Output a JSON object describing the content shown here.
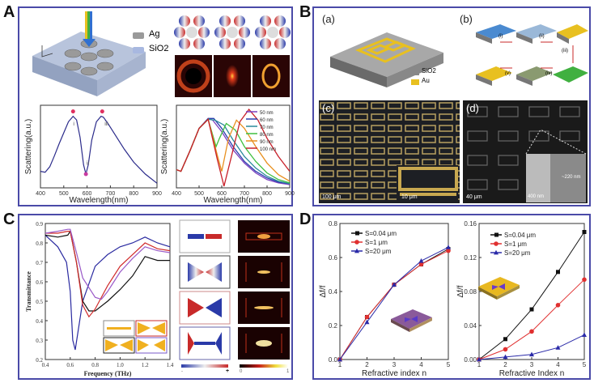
{
  "panels": {
    "A": {
      "letter": "A",
      "legend_materials": [
        "Ag",
        "SiO2"
      ],
      "mode_labels": [
        "i",
        "ii",
        "iii"
      ]
    },
    "B": {
      "letter": "B",
      "sublabels": [
        "(a)",
        "(b)",
        "(c)",
        "(d)"
      ],
      "materials": [
        "SiO2",
        "Au"
      ],
      "steps": [
        "(i)",
        "(ii)",
        "(iii)",
        "(iv)",
        "(v)"
      ],
      "scalebars": [
        "100 μm",
        "10 μm",
        "40 μm",
        "400 nm",
        "~220 nm"
      ]
    },
    "C": {
      "letter": "C",
      "colorbar_labels": [
        "-",
        "+",
        "0",
        "1"
      ]
    },
    "D": {
      "letter": "D"
    }
  },
  "chart_data": [
    {
      "id": "A-left",
      "type": "line",
      "xlabel": "Wavelength(nm)",
      "ylabel": "Scattering(a.u.)",
      "xlim": [
        400,
        900
      ],
      "xticks": [
        "400",
        "500",
        "600",
        "700",
        "800",
        "900"
      ],
      "annotations": [
        "i",
        "ii",
        "iii"
      ],
      "series": [
        {
          "name": "spectrum",
          "color": "#2a2a8a",
          "x": [
            400,
            420,
            440,
            460,
            480,
            500,
            520,
            540,
            555,
            570,
            585,
            595,
            605,
            620,
            640,
            660,
            670,
            690,
            720,
            760,
            800,
            850,
            900
          ],
          "y": [
            0.28,
            0.27,
            0.33,
            0.45,
            0.58,
            0.7,
            0.82,
            0.88,
            0.84,
            0.65,
            0.35,
            0.25,
            0.35,
            0.62,
            0.82,
            0.88,
            0.87,
            0.8,
            0.68,
            0.52,
            0.38,
            0.25,
            0.15
          ]
        }
      ]
    },
    {
      "id": "A-right",
      "type": "line",
      "xlabel": "Wavelength(nm)",
      "ylabel": "Scattering(a.u.)",
      "xlim": [
        400,
        900
      ],
      "xticks": [
        "400",
        "500",
        "600",
        "700",
        "800",
        "900"
      ],
      "legend": [
        "50 nm",
        "60 nm",
        "70 nm",
        "80 nm",
        "90 nm",
        "100 nm"
      ],
      "series": [
        {
          "name": "50 nm",
          "color": "#7b3fbf",
          "x": [
            400,
            420,
            460,
            500,
            540,
            560,
            600,
            650,
            700,
            750,
            800,
            850,
            900
          ],
          "y": [
            0.22,
            0.2,
            0.45,
            0.72,
            0.84,
            0.82,
            0.68,
            0.46,
            0.3,
            0.18,
            0.1,
            0.06,
            0.04
          ]
        },
        {
          "name": "60 nm",
          "color": "#2a3fae",
          "x": [
            400,
            420,
            460,
            500,
            540,
            565,
            600,
            650,
            700,
            750,
            800,
            850,
            900
          ],
          "y": [
            0.22,
            0.2,
            0.45,
            0.72,
            0.84,
            0.84,
            0.72,
            0.5,
            0.32,
            0.2,
            0.12,
            0.07,
            0.05
          ]
        },
        {
          "name": "70 nm",
          "color": "#2a8a9a",
          "x": [
            400,
            420,
            460,
            500,
            540,
            570,
            610,
            650,
            700,
            750,
            800,
            850,
            900
          ],
          "y": [
            0.22,
            0.2,
            0.45,
            0.72,
            0.83,
            0.82,
            0.76,
            0.58,
            0.38,
            0.24,
            0.14,
            0.08,
            0.05
          ]
        },
        {
          "name": "80 nm",
          "color": "#3fbf3f",
          "x": [
            400,
            420,
            460,
            500,
            540,
            575,
            590,
            620,
            660,
            700,
            750,
            800,
            850,
            900
          ],
          "y": [
            0.22,
            0.2,
            0.45,
            0.72,
            0.83,
            0.5,
            0.6,
            0.78,
            0.7,
            0.5,
            0.32,
            0.18,
            0.1,
            0.06
          ]
        },
        {
          "name": "90 nm",
          "color": "#e8901f",
          "x": [
            400,
            420,
            460,
            500,
            540,
            580,
            600,
            630,
            665,
            700,
            750,
            800,
            850,
            900
          ],
          "y": [
            0.22,
            0.2,
            0.45,
            0.72,
            0.83,
            0.4,
            0.2,
            0.6,
            0.82,
            0.72,
            0.5,
            0.3,
            0.16,
            0.08
          ]
        },
        {
          "name": "100 nm",
          "color": "#c8202a",
          "x": [
            400,
            420,
            460,
            500,
            540,
            580,
            610,
            640,
            680,
            720,
            760,
            800,
            850,
            900
          ],
          "y": [
            0.22,
            0.2,
            0.45,
            0.72,
            0.83,
            0.35,
            0.02,
            0.35,
            0.8,
            0.95,
            0.82,
            0.6,
            0.38,
            0.2
          ]
        }
      ]
    },
    {
      "id": "C",
      "type": "line",
      "xlabel": "Frequency (THz)",
      "ylabel": "Transmittance",
      "xlim": [
        0.4,
        1.4
      ],
      "ylim": [
        0.2,
        0.9
      ],
      "xticks": [
        "0.4",
        "0.6",
        "0.8",
        "1.0",
        "1.2",
        "1.4"
      ],
      "yticks": [
        "0.2",
        "0.3",
        "0.4",
        "0.5",
        "0.6",
        "0.7",
        "0.8",
        "0.9"
      ],
      "series": [
        {
          "name": "blue",
          "color": "#2a2aa0",
          "x": [
            0.4,
            0.5,
            0.57,
            0.6,
            0.62,
            0.64,
            0.7,
            0.8,
            0.9,
            1.0,
            1.1,
            1.2,
            1.3,
            1.4
          ],
          "y": [
            0.84,
            0.78,
            0.7,
            0.55,
            0.3,
            0.25,
            0.5,
            0.68,
            0.74,
            0.78,
            0.8,
            0.83,
            0.8,
            0.78
          ]
        },
        {
          "name": "black",
          "color": "#111111",
          "x": [
            0.4,
            0.5,
            0.58,
            0.6,
            0.65,
            0.7,
            0.75,
            0.8,
            0.9,
            1.0,
            1.1,
            1.2,
            1.3,
            1.4
          ],
          "y": [
            0.84,
            0.83,
            0.84,
            0.86,
            0.7,
            0.5,
            0.45,
            0.45,
            0.5,
            0.56,
            0.63,
            0.73,
            0.71,
            0.71
          ]
        },
        {
          "name": "red",
          "color": "#d02a2a",
          "x": [
            0.4,
            0.5,
            0.58,
            0.6,
            0.65,
            0.7,
            0.75,
            0.8,
            0.9,
            1.0,
            1.1,
            1.2,
            1.3,
            1.4
          ],
          "y": [
            0.85,
            0.85,
            0.86,
            0.86,
            0.7,
            0.48,
            0.42,
            0.46,
            0.58,
            0.68,
            0.74,
            0.8,
            0.77,
            0.76
          ]
        },
        {
          "name": "purple",
          "color": "#9a5ac8",
          "x": [
            0.4,
            0.5,
            0.58,
            0.6,
            0.65,
            0.7,
            0.8,
            0.85,
            0.9,
            1.0,
            1.1,
            1.2,
            1.3,
            1.4
          ],
          "y": [
            0.85,
            0.86,
            0.87,
            0.87,
            0.75,
            0.62,
            0.52,
            0.51,
            0.55,
            0.65,
            0.72,
            0.78,
            0.76,
            0.75
          ]
        }
      ]
    },
    {
      "id": "D-left",
      "type": "line",
      "xlabel": "Refractive index n",
      "ylabel": "Δf/f",
      "xlim": [
        1,
        5
      ],
      "ylim": [
        0,
        0.8
      ],
      "xticks": [
        "1",
        "2",
        "3",
        "4",
        "5"
      ],
      "yticks": [
        "0.0",
        "0.2",
        "0.4",
        "0.6",
        "0.8"
      ],
      "legend": [
        "S=0.04 μm",
        "S=1 μm",
        "S=20 μm"
      ],
      "categories": [
        1,
        2,
        3,
        4,
        5
      ],
      "series": [
        {
          "name": "S=0.04 μm",
          "color": "#111111",
          "marker": "square",
          "values": [
            0,
            0.25,
            0.44,
            0.56,
            0.65
          ]
        },
        {
          "name": "S=1 μm",
          "color": "#e03030",
          "marker": "circle",
          "values": [
            0,
            0.25,
            0.44,
            0.56,
            0.64
          ]
        },
        {
          "name": "S=20 μm",
          "color": "#2a2aa8",
          "marker": "triangle",
          "values": [
            0,
            0.22,
            0.44,
            0.58,
            0.66
          ]
        }
      ]
    },
    {
      "id": "D-right",
      "type": "line",
      "xlabel": "Refractive Index n",
      "ylabel": "Δf/f",
      "xlim": [
        1,
        5
      ],
      "ylim": [
        0,
        0.16
      ],
      "xticks": [
        "1",
        "2",
        "3",
        "4",
        "5"
      ],
      "yticks": [
        "0.00",
        "0.04",
        "0.08",
        "0.12",
        "0.16"
      ],
      "legend": [
        "S=0.04 μm",
        "S=1 μm",
        "S=20 μm"
      ],
      "categories": [
        1,
        2,
        3,
        4,
        5
      ],
      "series": [
        {
          "name": "S=0.04 μm",
          "color": "#111111",
          "marker": "square",
          "values": [
            0,
            0.024,
            0.059,
            0.103,
            0.15
          ]
        },
        {
          "name": "S=1 μm",
          "color": "#e03030",
          "marker": "circle",
          "values": [
            0,
            0.012,
            0.033,
            0.064,
            0.094
          ]
        },
        {
          "name": "S=20 μm",
          "color": "#2a2aa8",
          "marker": "triangle",
          "values": [
            0,
            0.003,
            0.006,
            0.014,
            0.029
          ]
        }
      ]
    }
  ]
}
